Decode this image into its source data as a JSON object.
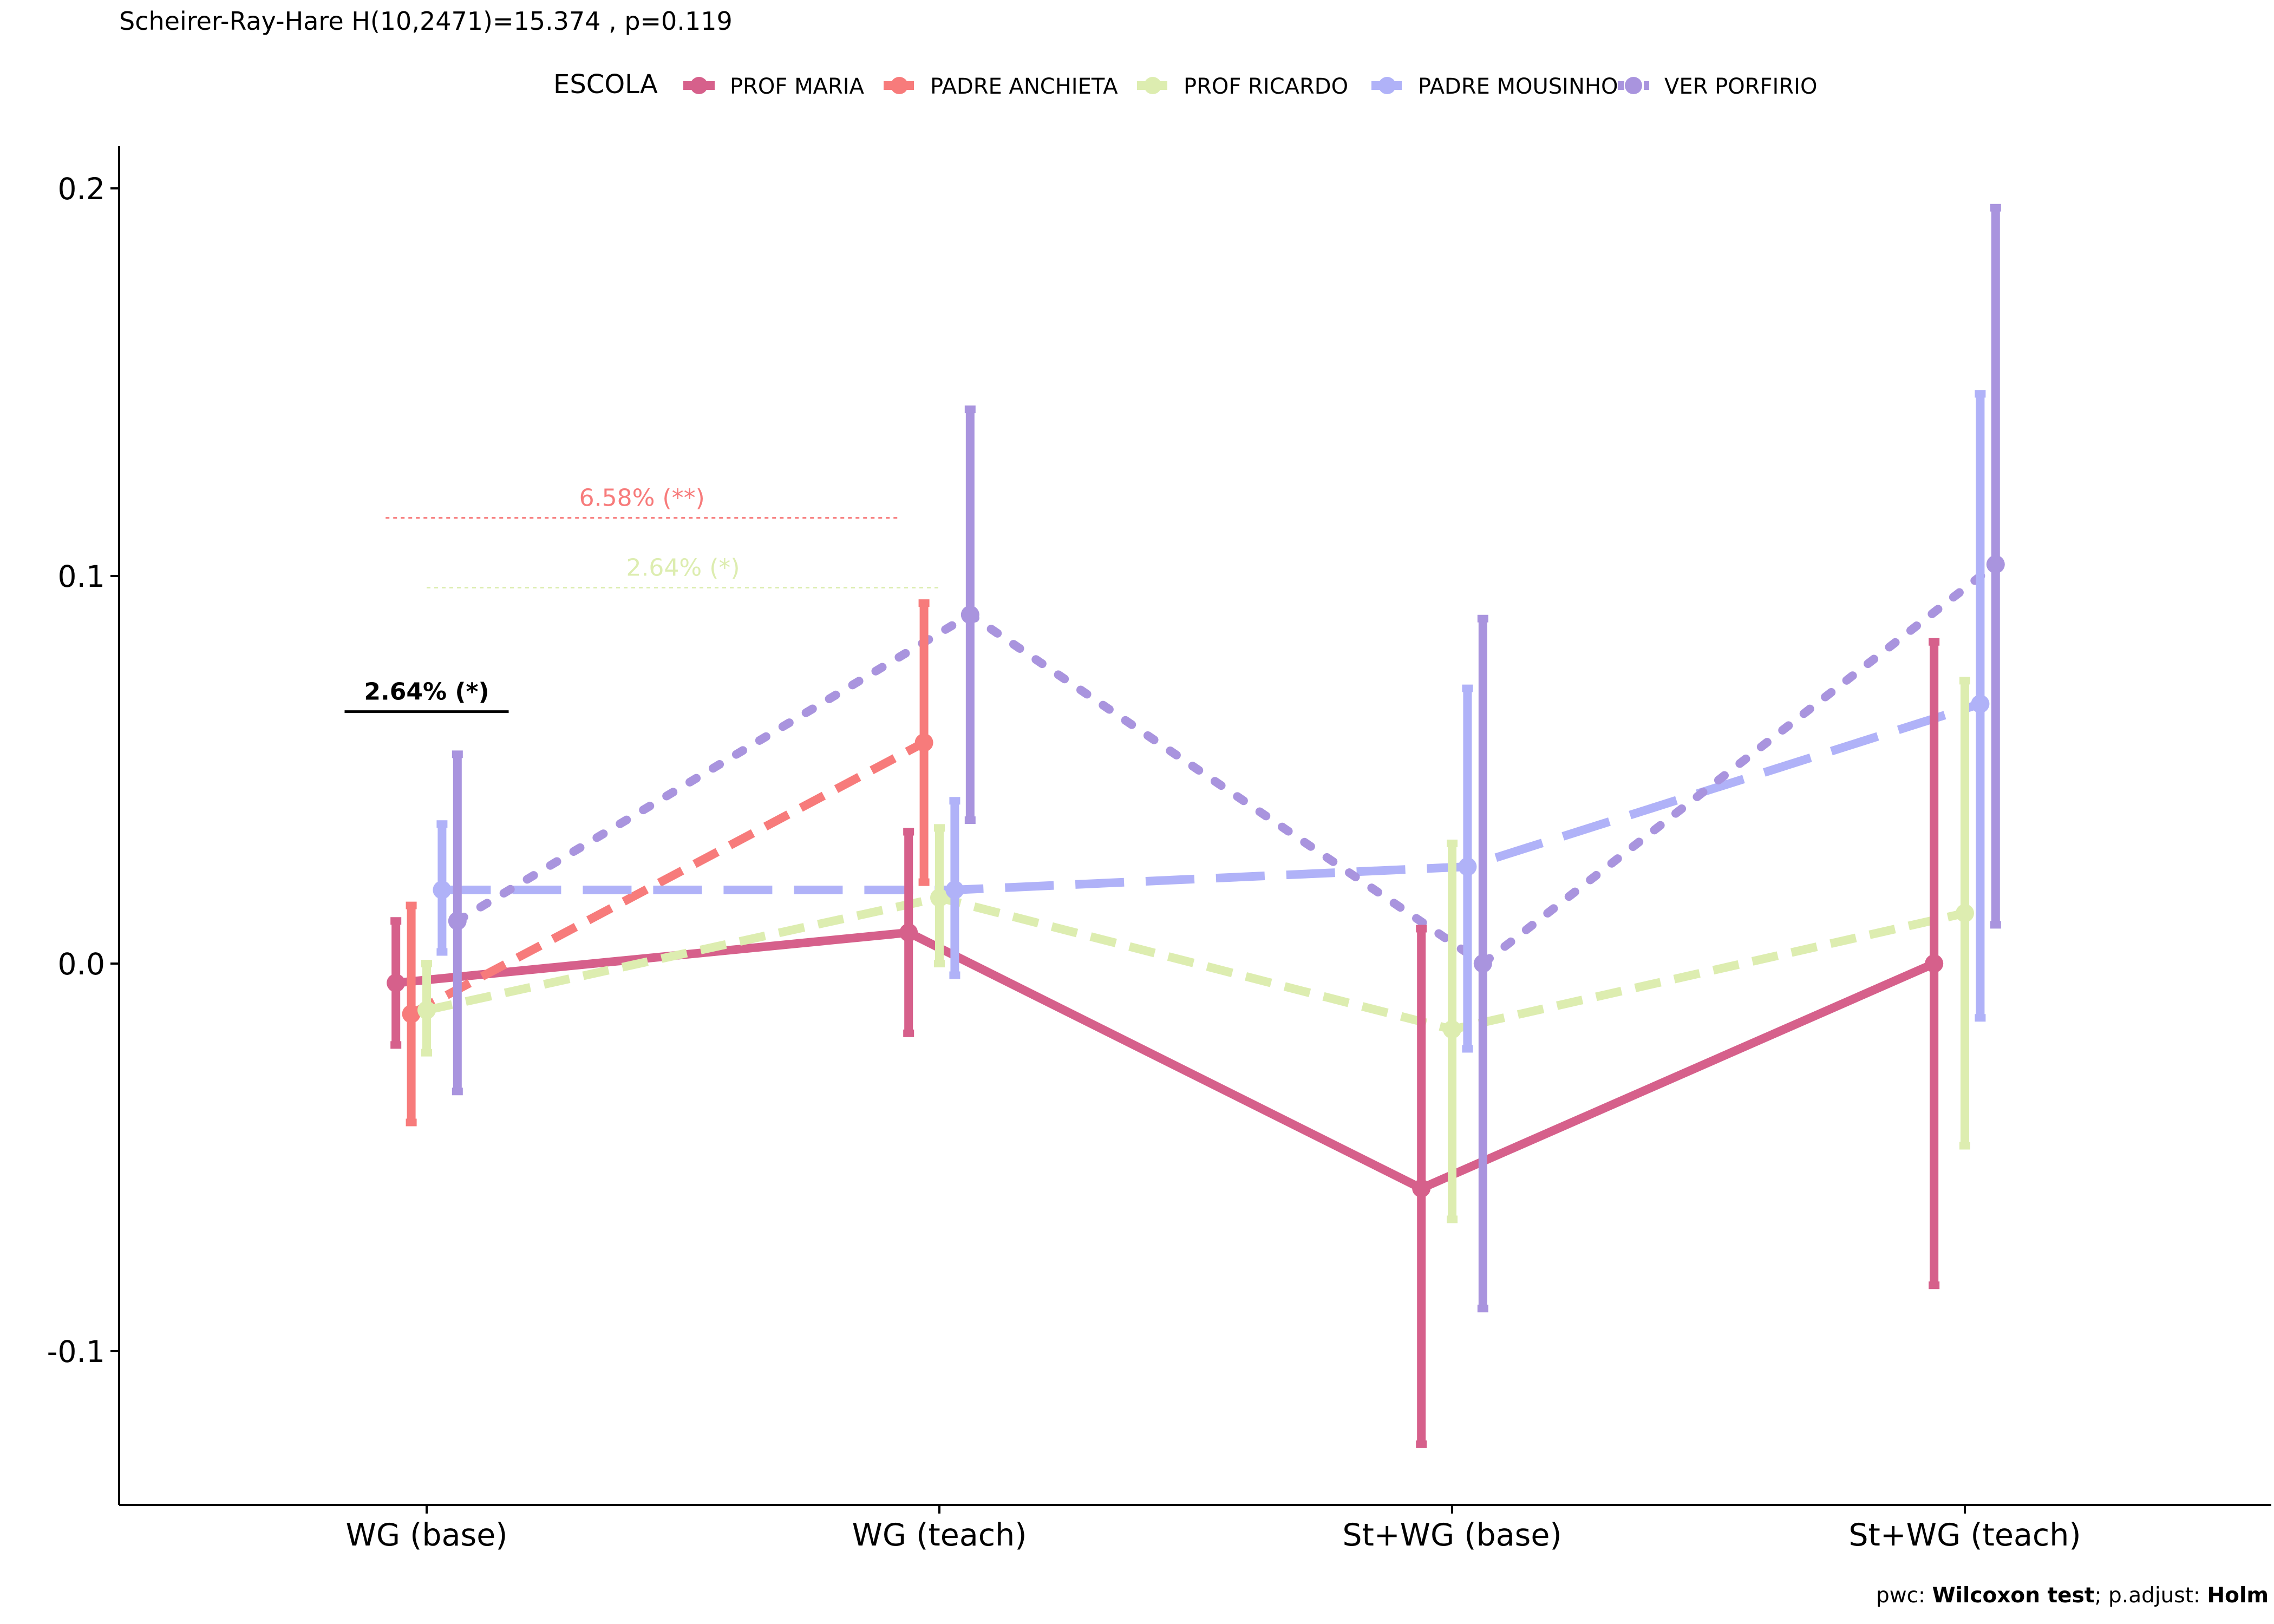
{
  "chart_data": {
    "type": "line",
    "title": "Scheirer-Ray-Hare H(10,2471)=15.374 , p=0.119",
    "caption": {
      "prefix": "pwc: ",
      "test": "Wilcoxon test",
      "middle": "; p.adjust: ",
      "method": "Holm"
    },
    "legend": {
      "title": "ESCOLA",
      "position": "top"
    },
    "xlabel": "",
    "ylabel": "",
    "categories": [
      "WG (base)",
      "WG (teach)",
      "St+WG (base)",
      "St+WG (teach)"
    ],
    "ylim": [
      -0.14,
      0.21
    ],
    "yticks": [
      -0.1,
      0.0,
      0.1,
      0.2
    ],
    "ytick_labels": [
      "-0.1",
      "0.0",
      "0.1",
      "0.2"
    ],
    "grid": false,
    "series": [
      {
        "name": "PROF MARIA",
        "color": "#D6608B",
        "dash": "solid",
        "offset": -0.06,
        "points": [
          {
            "x": "WG (base)",
            "y": -0.005,
            "lo": -0.021,
            "hi": 0.011
          },
          {
            "x": "WG (teach)",
            "y": 0.008,
            "lo": -0.018,
            "hi": 0.034
          },
          {
            "x": "St+WG (base)",
            "y": -0.058,
            "lo": -0.124,
            "hi": 0.009
          },
          {
            "x": "St+WG (teach)",
            "y": 0.0,
            "lo": -0.083,
            "hi": 0.083
          }
        ]
      },
      {
        "name": "PADRE ANCHIETA",
        "color": "#F77B7B",
        "dash": "dashed",
        "offset": -0.03,
        "points": [
          {
            "x": "WG (base)",
            "y": -0.013,
            "lo": -0.041,
            "hi": 0.015
          },
          {
            "x": "WG (teach)",
            "y": 0.057,
            "lo": 0.021,
            "hi": 0.093
          }
        ]
      },
      {
        "name": "PROF RICARDO",
        "color": "#DDEDB0",
        "dash": "dashed",
        "offset": 0.0,
        "points": [
          {
            "x": "WG (base)",
            "y": -0.012,
            "lo": -0.023,
            "hi": 0.0
          },
          {
            "x": "WG (teach)",
            "y": 0.017,
            "lo": 0.0,
            "hi": 0.035
          },
          {
            "x": "St+WG (base)",
            "y": -0.017,
            "lo": -0.066,
            "hi": 0.031
          },
          {
            "x": "St+WG (teach)",
            "y": 0.013,
            "lo": -0.047,
            "hi": 0.073
          }
        ]
      },
      {
        "name": "PADRE MOUSINHO",
        "color": "#B0B2F8",
        "dash": "longdash",
        "offset": 0.03,
        "points": [
          {
            "x": "WG (base)",
            "y": 0.019,
            "lo": 0.003,
            "hi": 0.036
          },
          {
            "x": "WG (teach)",
            "y": 0.019,
            "lo": -0.003,
            "hi": 0.042
          },
          {
            "x": "St+WG (base)",
            "y": 0.025,
            "lo": -0.022,
            "hi": 0.071
          },
          {
            "x": "St+WG (teach)",
            "y": 0.067,
            "lo": -0.014,
            "hi": 0.147
          }
        ]
      },
      {
        "name": "VER PORFIRIO",
        "color": "#A994DE",
        "dash": "dotted",
        "offset": 0.06,
        "points": [
          {
            "x": "WG (base)",
            "y": 0.011,
            "lo": -0.033,
            "hi": 0.054
          },
          {
            "x": "WG (teach)",
            "y": 0.09,
            "lo": 0.037,
            "hi": 0.143
          },
          {
            "x": "St+WG (base)",
            "y": 0.0,
            "lo": -0.089,
            "hi": 0.089
          },
          {
            "x": "St+WG (teach)",
            "y": 0.103,
            "lo": 0.01,
            "hi": 0.195
          }
        ]
      }
    ],
    "annotations": [
      {
        "label": "6.58% (**)",
        "color": "#F77B7B",
        "style": "dotted",
        "y": 0.115,
        "from": {
          "x": "WG (base)",
          "offset": -0.08
        },
        "to": {
          "x": "WG (teach)",
          "offset": -0.08
        }
      },
      {
        "label": "2.64% (*)",
        "color": "#DDEDB0",
        "style": "dotted",
        "y": 0.097,
        "from": {
          "x": "WG (base)",
          "offset": 0.0
        },
        "to": {
          "x": "WG (teach)",
          "offset": 0.0
        }
      },
      {
        "label": "2.64% (*)",
        "color": "#000000",
        "style": "solid",
        "y": 0.065,
        "from": {
          "x": "WG (base)",
          "offset": -0.16
        },
        "to": {
          "x": "WG (base)",
          "offset": 0.16
        }
      }
    ]
  }
}
